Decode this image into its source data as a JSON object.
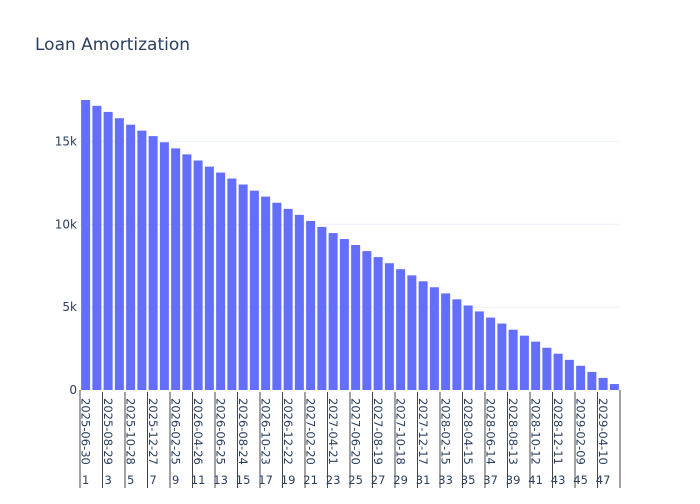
{
  "chart_data": {
    "type": "bar",
    "title": "Loan Amortization",
    "xlabel": "",
    "ylabel": "",
    "ylim": [
      0,
      17500
    ],
    "y_ticks": [
      {
        "value": 0,
        "label": "0"
      },
      {
        "value": 5000,
        "label": "5k"
      },
      {
        "value": 10000,
        "label": "10k"
      },
      {
        "value": 15000,
        "label": "15k"
      }
    ],
    "grid": true,
    "bar_color": "#636efa",
    "x_date_labels": [
      "2025-06-30",
      "2025-08-29",
      "2025-10-28",
      "2025-12-27",
      "2026-02-25",
      "2026-04-26",
      "2026-06-25",
      "2026-08-24",
      "2026-10-23",
      "2026-12-22",
      "2027-02-20",
      "2027-04-21",
      "2027-06-20",
      "2027-08-19",
      "2027-10-18",
      "2027-12-17",
      "2028-02-15",
      "2028-04-15",
      "2028-06-14",
      "2028-08-13",
      "2028-10-12",
      "2028-12-11",
      "2029-02-09",
      "2029-04-10"
    ],
    "x_period_labels": [
      "1",
      "3",
      "5",
      "7",
      "9",
      "11",
      "13",
      "15",
      "17",
      "19",
      "21",
      "23",
      "25",
      "27",
      "29",
      "31",
      "33",
      "35",
      "37",
      "39",
      "41",
      "43",
      "45",
      "47"
    ],
    "periods": [
      1,
      2,
      3,
      4,
      5,
      6,
      7,
      8,
      9,
      10,
      11,
      12,
      13,
      14,
      15,
      16,
      17,
      18,
      19,
      20,
      21,
      22,
      23,
      24,
      25,
      26,
      27,
      28,
      29,
      30,
      31,
      32,
      33,
      34,
      35,
      36,
      37,
      38,
      39,
      40,
      41,
      42,
      43,
      44,
      45,
      46,
      47,
      48
    ],
    "values": [
      17500,
      17150,
      16780,
      16400,
      16010,
      15650,
      15320,
      14950,
      14580,
      14220,
      13850,
      13480,
      13120,
      12760,
      12400,
      12030,
      11670,
      11300,
      10930,
      10570,
      10200,
      9840,
      9470,
      9110,
      8750,
      8380,
      8020,
      7650,
      7290,
      6920,
      6560,
      6200,
      5830,
      5470,
      5100,
      4740,
      4370,
      4010,
      3640,
      3280,
      2920,
      2550,
      2190,
      1820,
      1460,
      1090,
      730,
      360
    ]
  }
}
